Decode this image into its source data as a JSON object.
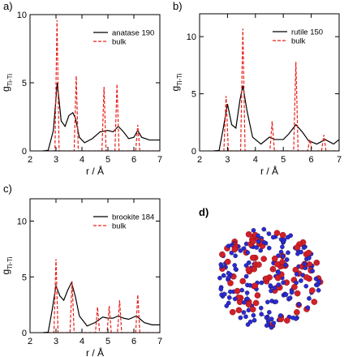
{
  "chart_data": [
    {
      "type": "line",
      "panel_label": "a)",
      "xlabel": "r / Å",
      "ylabel": "g",
      "ylabel_sub": "Ti-Ti",
      "legend": "upper right",
      "xlim": [
        2,
        7
      ],
      "ylim": [
        0,
        10
      ],
      "xticks": [
        2,
        3,
        4,
        5,
        6,
        7
      ],
      "yticks": [
        0,
        5,
        10
      ],
      "series": [
        {
          "name": "anatase 190",
          "color": "#000000",
          "dash": "solid",
          "x": [
            2.5,
            2.7,
            2.9,
            3.05,
            3.2,
            3.35,
            3.5,
            3.65,
            3.75,
            3.9,
            4.1,
            4.4,
            4.7,
            5.0,
            5.2,
            5.4,
            5.6,
            5.8,
            6.0,
            6.15,
            6.3,
            6.6,
            7.0
          ],
          "values": [
            0,
            0.05,
            1.5,
            5.0,
            2.2,
            1.8,
            2.6,
            2.8,
            2.4,
            1.0,
            0.6,
            0.9,
            1.4,
            1.5,
            1.4,
            1.8,
            1.4,
            0.9,
            1.0,
            1.5,
            1.0,
            0.8,
            0.8
          ]
        },
        {
          "name": "bulk",
          "color": "#e8201a",
          "dash": "dashed",
          "x": [
            2.5,
            2.96,
            3.04,
            3.12,
            3.7,
            3.78,
            3.86,
            4.77,
            4.85,
            4.93,
            5.27,
            5.35,
            5.43,
            6.07,
            6.15,
            6.23,
            7.0
          ],
          "values": [
            0,
            0,
            9.6,
            0,
            0,
            5.5,
            0,
            0,
            4.7,
            0,
            0,
            4.9,
            0,
            0,
            1.9,
            0,
            0
          ]
        }
      ]
    },
    {
      "type": "line",
      "panel_label": "b)",
      "xlabel": "r / Å",
      "ylabel": "g",
      "ylabel_sub": "Ti-Ti",
      "legend": "upper right",
      "xlim": [
        2,
        7
      ],
      "ylim": [
        0,
        12
      ],
      "xticks": [
        2,
        3,
        4,
        5,
        6,
        7
      ],
      "yticks": [
        0,
        5,
        10
      ],
      "series": [
        {
          "name": "rutile 150",
          "color": "#000000",
          "dash": "solid",
          "x": [
            2.5,
            2.7,
            2.85,
            3.0,
            3.15,
            3.3,
            3.45,
            3.55,
            3.7,
            3.9,
            4.2,
            4.5,
            4.7,
            5.0,
            5.2,
            5.45,
            5.7,
            5.9,
            6.2,
            6.5,
            6.8,
            7.0
          ],
          "values": [
            0,
            0.05,
            2.0,
            4.1,
            2.3,
            2.0,
            4.5,
            5.7,
            3.5,
            1.2,
            0.6,
            1.2,
            1.0,
            1.0,
            1.5,
            2.3,
            1.6,
            0.9,
            0.6,
            1.0,
            0.6,
            1.0
          ]
        },
        {
          "name": "bulk",
          "color": "#e8201a",
          "dash": "dashed",
          "x": [
            2.5,
            2.87,
            2.95,
            3.03,
            3.47,
            3.55,
            3.63,
            4.52,
            4.6,
            4.68,
            5.37,
            5.45,
            5.53,
            5.87,
            5.95,
            6.03,
            6.37,
            6.45,
            6.53,
            7.0
          ],
          "values": [
            0,
            0,
            4.8,
            0,
            0,
            10.7,
            0,
            0,
            2.6,
            0,
            0,
            7.8,
            0,
            0,
            1.0,
            0,
            0,
            1.4,
            0,
            0
          ]
        }
      ]
    },
    {
      "type": "line",
      "panel_label": "c)",
      "xlabel": "r / Å",
      "ylabel": "g",
      "ylabel_sub": "Ti-Ti",
      "legend": "upper right",
      "xlim": [
        2,
        7
      ],
      "ylim": [
        0,
        12
      ],
      "xticks": [
        2,
        3,
        4,
        5,
        6,
        7
      ],
      "yticks": [
        0,
        5,
        10
      ],
      "series": [
        {
          "name": "brookite 184",
          "color": "#000000",
          "dash": "solid",
          "x": [
            2.5,
            2.7,
            2.85,
            3.0,
            3.15,
            3.3,
            3.45,
            3.6,
            3.75,
            3.9,
            4.2,
            4.5,
            4.8,
            5.0,
            5.2,
            5.4,
            5.6,
            5.8,
            6.1,
            6.4,
            6.7,
            7.0
          ],
          "values": [
            0,
            0.05,
            2.0,
            4.2,
            3.3,
            2.9,
            3.8,
            4.5,
            3.2,
            1.5,
            0.6,
            0.9,
            1.4,
            1.3,
            1.3,
            1.5,
            1.3,
            1.2,
            1.5,
            0.9,
            0.7,
            0.7
          ]
        },
        {
          "name": "bulk",
          "color": "#e8201a",
          "dash": "dashed",
          "x": [
            2.5,
            2.92,
            3.0,
            3.08,
            3.54,
            3.62,
            3.7,
            4.52,
            4.6,
            4.68,
            4.97,
            5.05,
            5.13,
            5.37,
            5.45,
            5.53,
            6.07,
            6.15,
            6.23,
            7.0
          ],
          "values": [
            0,
            0,
            6.6,
            0,
            0,
            4.6,
            0,
            0,
            2.3,
            0,
            0,
            2.4,
            0,
            0,
            2.9,
            0,
            0,
            3.4,
            0,
            0
          ]
        }
      ]
    }
  ],
  "image_panel": {
    "label": "d)"
  }
}
